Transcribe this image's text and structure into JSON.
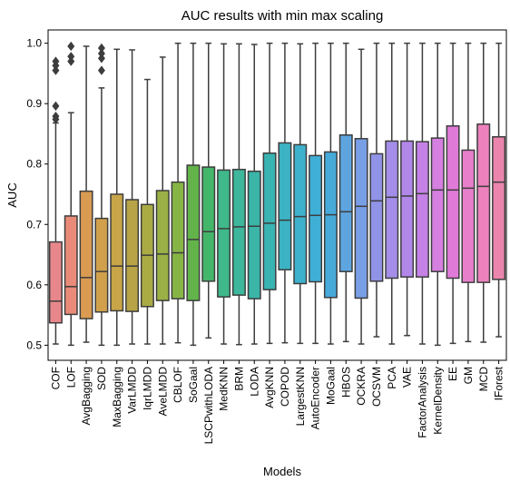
{
  "chart_data": {
    "type": "box",
    "title": "AUC results with min max scaling",
    "xlabel": "Models",
    "ylabel": "AUC",
    "ylim": [
      0.475,
      1.022
    ],
    "yticks": [
      "0.5",
      "0.6",
      "0.7",
      "0.8",
      "0.9",
      "1.0"
    ],
    "grid": false,
    "legend": "none",
    "categories": [
      "COF",
      "LOF",
      "AvgBagging",
      "SOD",
      "MaxBagging",
      "VarLMDD",
      "IqrLMDD",
      "AveLMDD",
      "CBLOF",
      "SoGaal",
      "LSCPwithLODA",
      "MedKNN",
      "BRM",
      "LODA",
      "AvgKNN",
      "COPOD",
      "LargestKNN",
      "AutoEncoder",
      "MoGaal",
      "HBOS",
      "OCKRA",
      "OCSVM",
      "PCA",
      "VAE",
      "FactorAnalysis",
      "KernelDensity",
      "EE",
      "GM",
      "MCD",
      "IForest"
    ],
    "colors": [
      "#e8878b",
      "#e98b78",
      "#d99a52",
      "#d1a04b",
      "#c8a548",
      "#b8a447",
      "#abab46",
      "#9bb046",
      "#87b545",
      "#62b44a",
      "#44b66a",
      "#3fb88a",
      "#3eb79c",
      "#3ab5a8",
      "#3ab3b3",
      "#3cb3c4",
      "#3eb1cc",
      "#40afd6",
      "#47aad9",
      "#5ea5e0",
      "#789ee6",
      "#9093e6",
      "#a48ee9",
      "#b287ea",
      "#c681e6",
      "#d57fe0",
      "#e07ad8",
      "#e87fcb",
      "#ec81bd",
      "#ec85ae"
    ],
    "boxes": [
      {
        "q1": 0.537,
        "median": 0.573,
        "q3": 0.671,
        "whislo": 0.502,
        "whishi": 0.868,
        "fliers": [
          0.874,
          0.879,
          0.896,
          0.955,
          0.963,
          0.97
        ]
      },
      {
        "q1": 0.551,
        "median": 0.597,
        "q3": 0.714,
        "whislo": 0.5,
        "whishi": 0.885,
        "fliers": [
          0.97,
          0.978,
          0.995
        ]
      },
      {
        "q1": 0.544,
        "median": 0.612,
        "q3": 0.755,
        "whislo": 0.505,
        "whishi": 0.995,
        "fliers": []
      },
      {
        "q1": 0.555,
        "median": 0.622,
        "q3": 0.71,
        "whislo": 0.5,
        "whishi": 0.926,
        "fliers": [
          0.955,
          0.975,
          0.983,
          0.992
        ]
      },
      {
        "q1": 0.557,
        "median": 0.631,
        "q3": 0.75,
        "whislo": 0.5,
        "whishi": 0.99,
        "fliers": []
      },
      {
        "q1": 0.556,
        "median": 0.631,
        "q3": 0.741,
        "whislo": 0.502,
        "whishi": 0.989,
        "fliers": []
      },
      {
        "q1": 0.564,
        "median": 0.649,
        "q3": 0.733,
        "whislo": 0.502,
        "whishi": 0.94,
        "fliers": []
      },
      {
        "q1": 0.574,
        "median": 0.651,
        "q3": 0.756,
        "whislo": 0.502,
        "whishi": 0.977,
        "fliers": []
      },
      {
        "q1": 0.577,
        "median": 0.653,
        "q3": 0.77,
        "whislo": 0.504,
        "whishi": 1.0,
        "fliers": []
      },
      {
        "q1": 0.574,
        "median": 0.675,
        "q3": 0.798,
        "whislo": 0.5,
        "whishi": 1.0,
        "fliers": []
      },
      {
        "q1": 0.606,
        "median": 0.688,
        "q3": 0.795,
        "whislo": 0.512,
        "whishi": 1.0,
        "fliers": []
      },
      {
        "q1": 0.58,
        "median": 0.693,
        "q3": 0.79,
        "whislo": 0.502,
        "whishi": 0.999,
        "fliers": []
      },
      {
        "q1": 0.583,
        "median": 0.696,
        "q3": 0.791,
        "whislo": 0.501,
        "whishi": 0.999,
        "fliers": []
      },
      {
        "q1": 0.577,
        "median": 0.697,
        "q3": 0.788,
        "whislo": 0.502,
        "whishi": 0.998,
        "fliers": []
      },
      {
        "q1": 0.592,
        "median": 0.702,
        "q3": 0.818,
        "whislo": 0.503,
        "whishi": 1.0,
        "fliers": []
      },
      {
        "q1": 0.625,
        "median": 0.707,
        "q3": 0.835,
        "whislo": 0.504,
        "whishi": 1.0,
        "fliers": []
      },
      {
        "q1": 0.602,
        "median": 0.713,
        "q3": 0.832,
        "whislo": 0.503,
        "whishi": 0.999,
        "fliers": []
      },
      {
        "q1": 0.605,
        "median": 0.715,
        "q3": 0.814,
        "whislo": 0.503,
        "whishi": 1.0,
        "fliers": []
      },
      {
        "q1": 0.579,
        "median": 0.716,
        "q3": 0.82,
        "whislo": 0.502,
        "whishi": 1.0,
        "fliers": []
      },
      {
        "q1": 0.622,
        "median": 0.721,
        "q3": 0.848,
        "whislo": 0.506,
        "whishi": 1.0,
        "fliers": []
      },
      {
        "q1": 0.578,
        "median": 0.73,
        "q3": 0.842,
        "whislo": 0.502,
        "whishi": 0.99,
        "fliers": []
      },
      {
        "q1": 0.606,
        "median": 0.739,
        "q3": 0.817,
        "whislo": 0.514,
        "whishi": 1.0,
        "fliers": []
      },
      {
        "q1": 0.611,
        "median": 0.745,
        "q3": 0.838,
        "whislo": 0.502,
        "whishi": 1.0,
        "fliers": []
      },
      {
        "q1": 0.613,
        "median": 0.747,
        "q3": 0.838,
        "whislo": 0.516,
        "whishi": 1.0,
        "fliers": []
      },
      {
        "q1": 0.613,
        "median": 0.751,
        "q3": 0.837,
        "whislo": 0.502,
        "whishi": 1.0,
        "fliers": []
      },
      {
        "q1": 0.622,
        "median": 0.757,
        "q3": 0.843,
        "whislo": 0.5,
        "whishi": 1.0,
        "fliers": []
      },
      {
        "q1": 0.611,
        "median": 0.757,
        "q3": 0.863,
        "whislo": 0.503,
        "whishi": 1.0,
        "fliers": []
      },
      {
        "q1": 0.604,
        "median": 0.76,
        "q3": 0.823,
        "whislo": 0.506,
        "whishi": 1.0,
        "fliers": []
      },
      {
        "q1": 0.604,
        "median": 0.763,
        "q3": 0.866,
        "whislo": 0.505,
        "whishi": 1.0,
        "fliers": []
      },
      {
        "q1": 0.609,
        "median": 0.77,
        "q3": 0.845,
        "whislo": 0.514,
        "whishi": 1.0,
        "fliers": []
      }
    ]
  }
}
